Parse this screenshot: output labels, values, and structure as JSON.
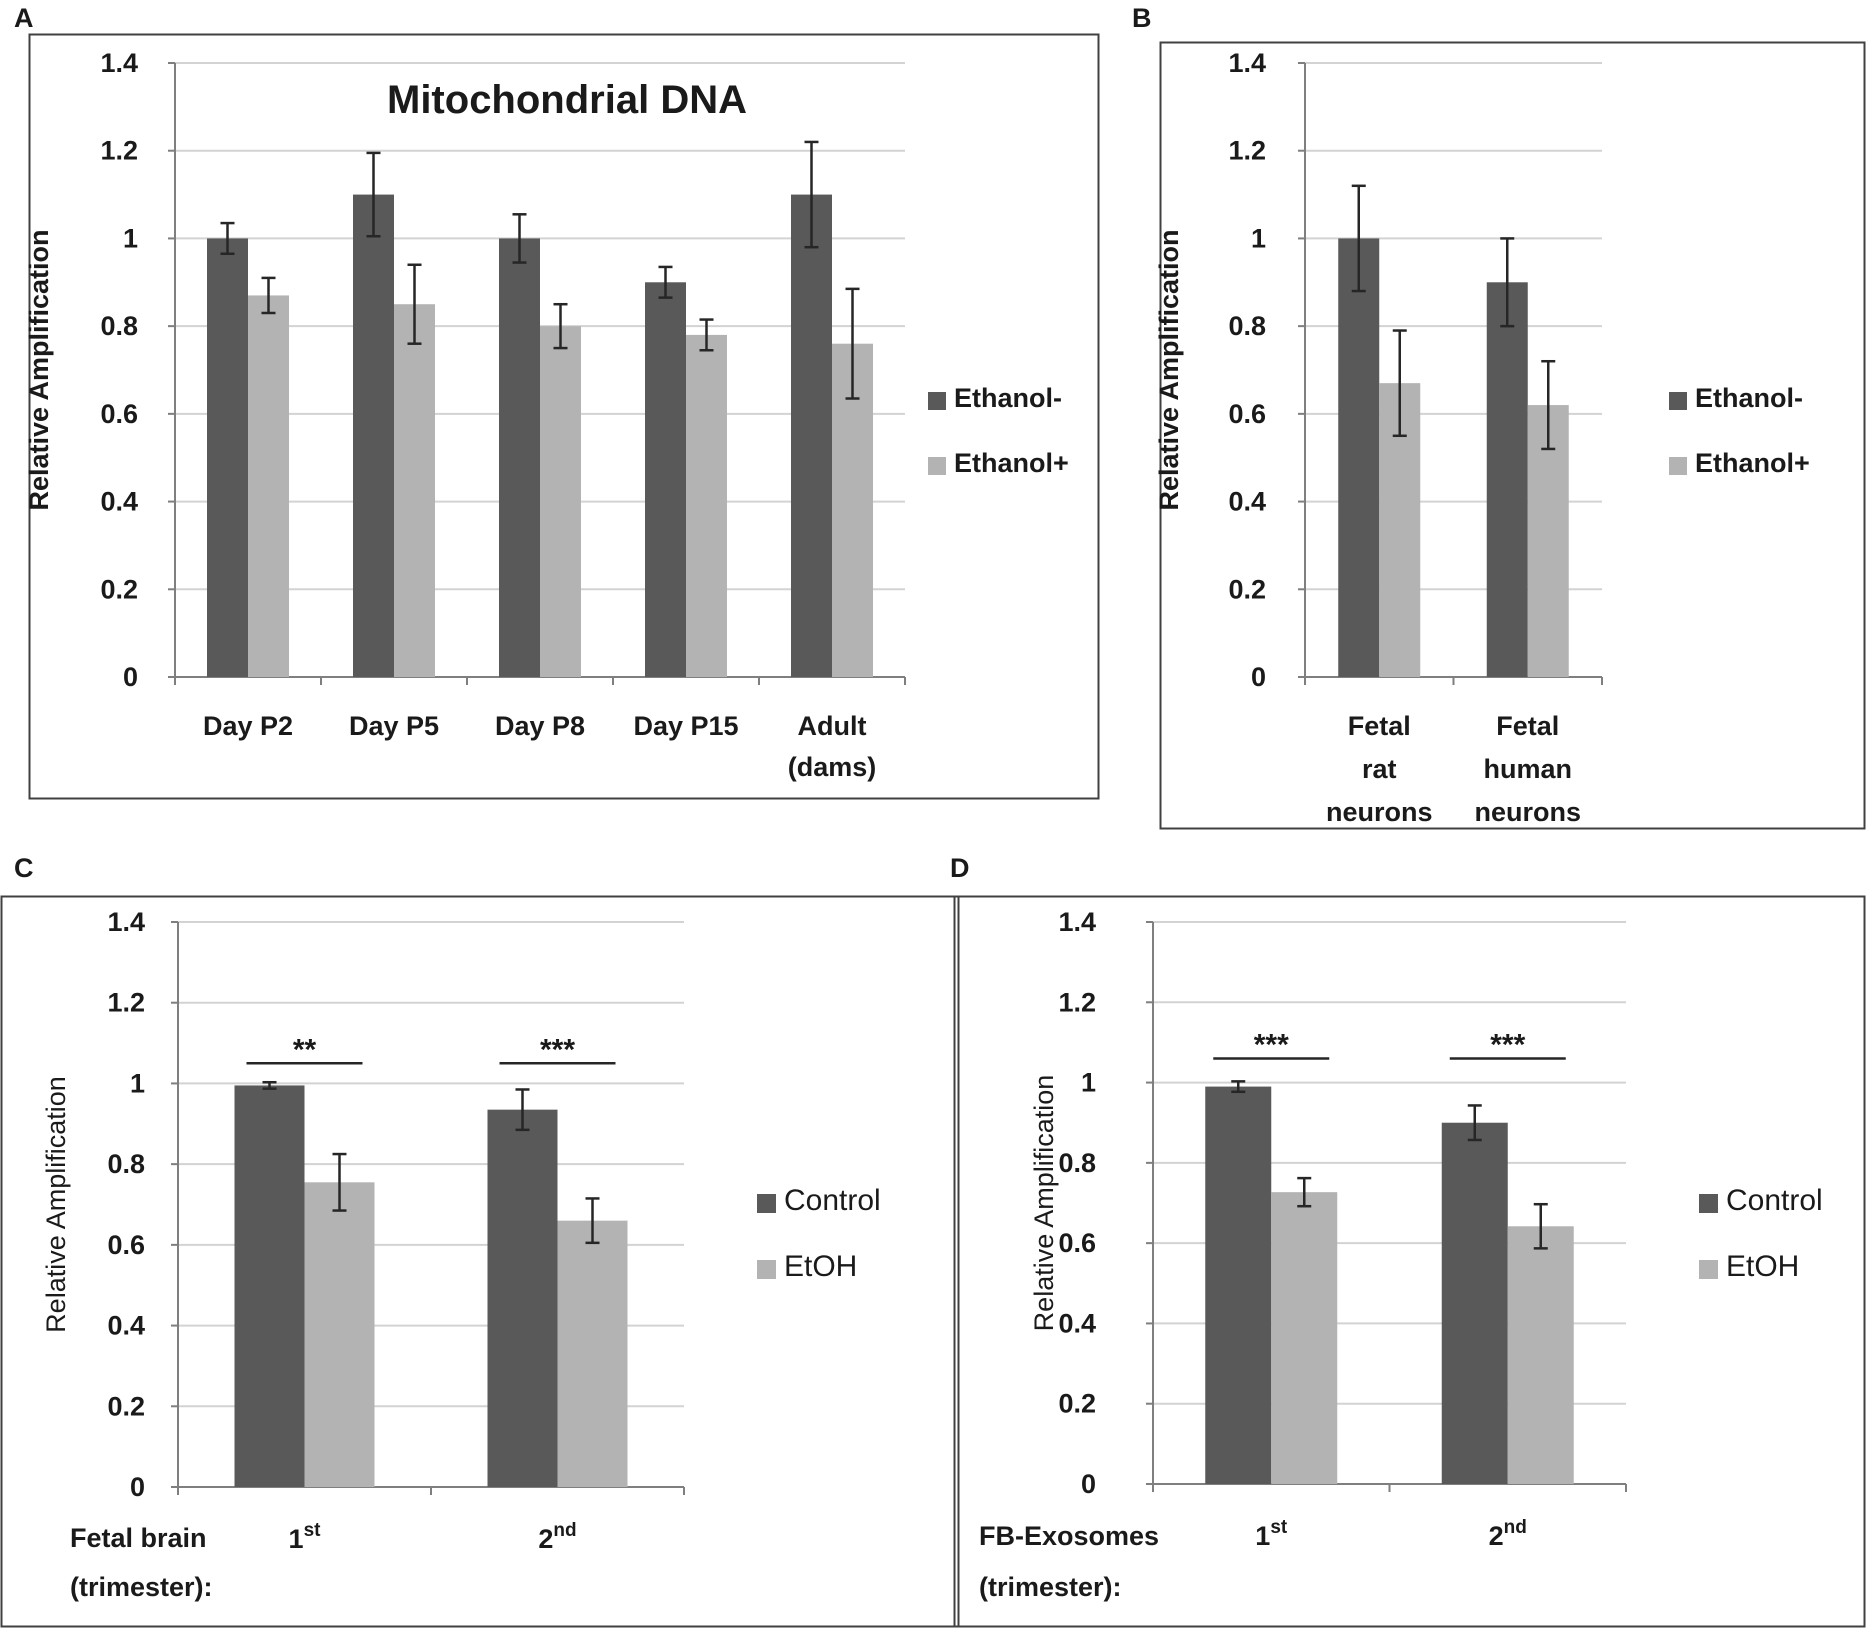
{
  "colors": {
    "control": "#595959",
    "treated": "#b3b3b3",
    "grid": "#d3d3d3",
    "axis": "#7f7f7f",
    "border": "#404040",
    "text": "#1a1a1a"
  },
  "chart_data": [
    {
      "panel": "A",
      "type": "bar",
      "title": "Mitochondrial  DNA",
      "ylabel": "Relative Amplification",
      "xlabel": "",
      "ylim": [
        0,
        1.4
      ],
      "yticks": [
        "0",
        "0.2",
        "0.4",
        "0.6",
        "0.8",
        "1",
        "1.2",
        "1.4"
      ],
      "categories": [
        [
          "Day P2"
        ],
        [
          "Day P5"
        ],
        [
          "Day P8"
        ],
        [
          "Day P15"
        ],
        [
          "Adult",
          "(dams)"
        ]
      ],
      "series": [
        {
          "name": "Ethanol-",
          "color_key": "control",
          "values": [
            1.0,
            1.1,
            1.0,
            0.9,
            1.1
          ],
          "errors": [
            0.035,
            0.095,
            0.055,
            0.035,
            0.12
          ]
        },
        {
          "name": "Ethanol+",
          "color_key": "treated",
          "values": [
            0.87,
            0.85,
            0.8,
            0.78,
            0.76
          ],
          "errors": [
            0.04,
            0.09,
            0.05,
            0.035,
            0.125
          ]
        }
      ],
      "significance": []
    },
    {
      "panel": "B",
      "type": "bar",
      "title": "",
      "ylabel": "Relative Amplification",
      "xlabel": "",
      "ylim": [
        0,
        1.4
      ],
      "yticks": [
        "0",
        "0.2",
        "0.4",
        "0.6",
        "0.8",
        "1",
        "1.2",
        "1.4"
      ],
      "categories": [
        [
          "Fetal",
          "rat",
          "neurons"
        ],
        [
          "Fetal",
          "human",
          "neurons"
        ]
      ],
      "series": [
        {
          "name": "Ethanol-",
          "color_key": "control",
          "values": [
            1.0,
            0.9
          ],
          "errors": [
            0.12,
            0.1
          ]
        },
        {
          "name": "Ethanol+",
          "color_key": "treated",
          "values": [
            0.67,
            0.62
          ],
          "errors": [
            0.12,
            0.1
          ]
        }
      ],
      "significance": []
    },
    {
      "panel": "C",
      "type": "bar",
      "title": "",
      "ylabel": "Relative Amplification",
      "xlabel_lines": [
        "Fetal brain",
        "(trimester):"
      ],
      "ylim": [
        0,
        1.4
      ],
      "yticks": [
        "0",
        "0.2",
        "0.4",
        "0.6",
        "0.8",
        "1",
        "1.2",
        "1.4"
      ],
      "categories": [
        {
          "base": "1",
          "sup": "st"
        },
        {
          "base": "2",
          "sup": "nd"
        }
      ],
      "series": [
        {
          "name": "Control",
          "color_key": "control",
          "values": [
            0.995,
            0.935
          ],
          "errors": [
            0.008,
            0.05
          ]
        },
        {
          "name": "EtOH",
          "color_key": "treated",
          "values": [
            0.755,
            0.66
          ],
          "errors": [
            0.07,
            0.055
          ]
        }
      ],
      "significance": [
        {
          "label": "**",
          "y": 1.05
        },
        {
          "label": "***",
          "y": 1.05
        }
      ]
    },
    {
      "panel": "D",
      "type": "bar",
      "title": "",
      "ylabel": "Relative Amplification",
      "xlabel_lines": [
        "FB-Exosomes",
        "(trimester):"
      ],
      "ylim": [
        0,
        1.4
      ],
      "yticks": [
        "0",
        "0.2",
        "0.4",
        "0.6",
        "0.8",
        "1",
        "1.2",
        "1.4"
      ],
      "categories": [
        {
          "base": "1",
          "sup": "st"
        },
        {
          "base": "2",
          "sup": "nd"
        }
      ],
      "series": [
        {
          "name": "Control",
          "color_key": "control",
          "values": [
            0.99,
            0.9
          ],
          "errors": [
            0.013,
            0.043
          ]
        },
        {
          "name": "EtOH",
          "color_key": "treated",
          "values": [
            0.727,
            0.642
          ],
          "errors": [
            0.035,
            0.055
          ]
        }
      ],
      "significance": [
        {
          "label": "***",
          "y": 1.06
        },
        {
          "label": "***",
          "y": 1.06
        }
      ]
    }
  ]
}
